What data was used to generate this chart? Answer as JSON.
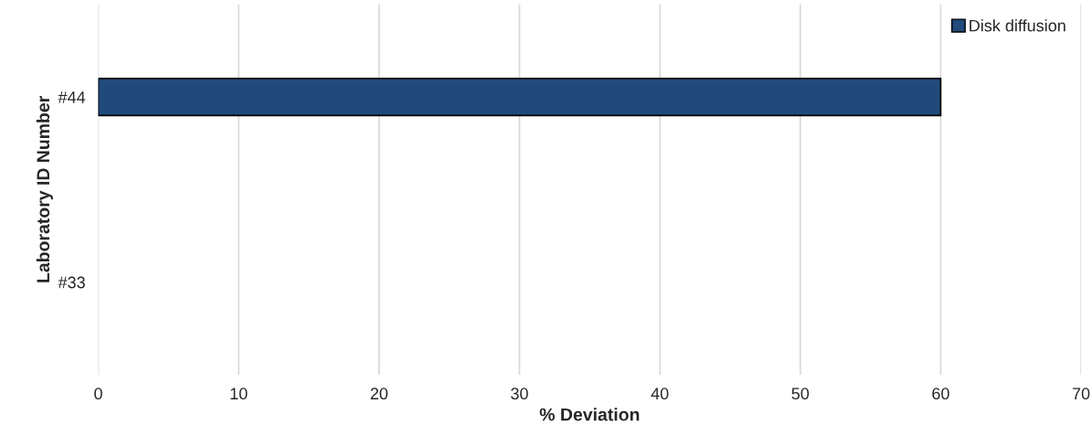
{
  "chart_data": {
    "type": "bar",
    "orientation": "horizontal",
    "xlabel": "% Deviation",
    "ylabel": "Laboratory ID Number",
    "categories": [
      "#44",
      "#33"
    ],
    "series": [
      {
        "name": "Disk diffusion",
        "color": "#214a7b",
        "values": [
          60,
          null
        ]
      }
    ],
    "xlim": [
      0,
      70
    ],
    "xticks": [
      0,
      10,
      20,
      30,
      40,
      50,
      60,
      70
    ],
    "grid": "x",
    "legend": "top right"
  }
}
